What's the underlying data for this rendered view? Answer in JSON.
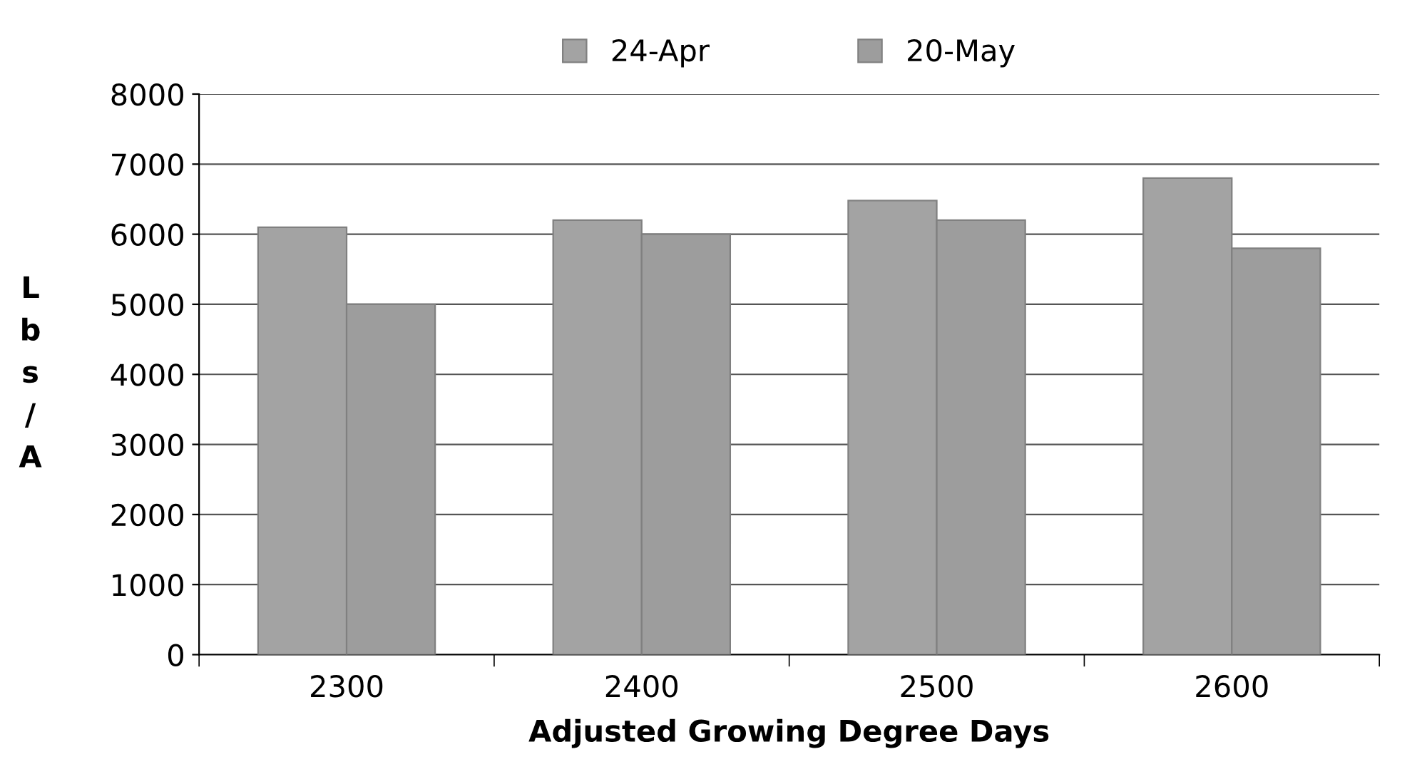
{
  "chart_data": {
    "type": "bar",
    "xlabel": "Adjusted Growing Degree Days",
    "ylabel": "Lbs/A",
    "categories": [
      "2300",
      "2400",
      "2500",
      "2600"
    ],
    "series": [
      {
        "name": "24-Apr",
        "color": "#a3a3a3",
        "values": [
          6100,
          6200,
          6480,
          6800
        ]
      },
      {
        "name": "20-May",
        "color": "#9d9d9d",
        "values": [
          5000,
          6000,
          6200,
          5800
        ]
      }
    ],
    "ylim": [
      0,
      8000
    ],
    "yticks": [
      0,
      1000,
      2000,
      3000,
      4000,
      5000,
      6000,
      7000,
      8000
    ],
    "grid": "y",
    "legend": "top"
  }
}
